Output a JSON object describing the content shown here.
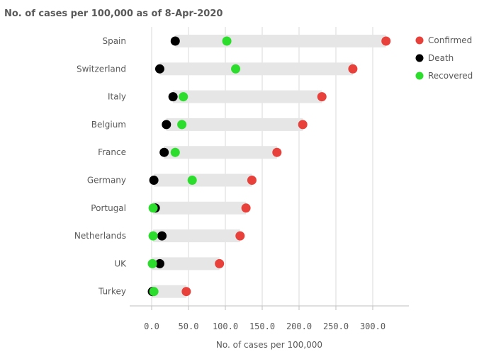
{
  "chart_data": {
    "type": "dumbbell",
    "title": "No. of cases per 100,000 as of 8-Apr-2020",
    "xlabel": "No. of cases per 100,000",
    "ylabel": "",
    "xlim": [
      -30,
      350
    ],
    "xticks": [
      0,
      50,
      100,
      150,
      200,
      250,
      300
    ],
    "xtick_labels": [
      "0.0",
      "50.0",
      "100.0",
      "150.0",
      "200.0",
      "250.0",
      "300.0"
    ],
    "grid": true,
    "legend_position": "top-right",
    "categories": [
      "Spain",
      "Switzerland",
      "Italy",
      "Belgium",
      "France",
      "Germany",
      "Portugal",
      "Netherlands",
      "UK",
      "Turkey"
    ],
    "series": [
      {
        "name": "Confirmed",
        "color": "#e8403a",
        "values": [
          318,
          273,
          231,
          205,
          170,
          136,
          128,
          120,
          92,
          47
        ]
      },
      {
        "name": "Death",
        "color": "#000000",
        "values": [
          32,
          11,
          29,
          20,
          17,
          3,
          5,
          14,
          11,
          1
        ]
      },
      {
        "name": "Recovered",
        "color": "#2ddd2d",
        "values": [
          102,
          114,
          43,
          41,
          32,
          55,
          2,
          2,
          1,
          3
        ]
      }
    ]
  }
}
